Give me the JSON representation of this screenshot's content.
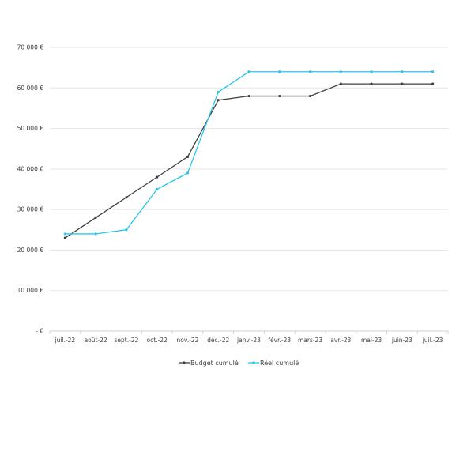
{
  "chart_data": {
    "type": "line",
    "title": "",
    "xlabel": "",
    "ylabel": "",
    "categories": [
      "juil.-22",
      "août-22",
      "sept.-22",
      "oct.-22",
      "nov.-22",
      "déc.-22",
      "janv.-23",
      "févr.-23",
      "mars-23",
      "avr.-23",
      "mai-23",
      "juin-23",
      "juil.-23"
    ],
    "ylim": [
      0,
      70000
    ],
    "y_ticks": [
      0,
      10000,
      20000,
      30000,
      40000,
      50000,
      60000,
      70000
    ],
    "y_tick_labels": [
      "- €",
      "10 000 €",
      "20 000 €",
      "30 000 €",
      "40 000 €",
      "50 000 €",
      "60 000 €",
      "70 000 €"
    ],
    "grid": true,
    "legend_position": "bottom",
    "series": [
      {
        "name": "Budget cumulé",
        "color": "#404040",
        "values": [
          23000,
          28000,
          33000,
          38000,
          43000,
          57000,
          58000,
          58000,
          58000,
          61000,
          61000,
          61000,
          61000
        ]
      },
      {
        "name": "Réel cumulé",
        "color": "#29c5ee",
        "values": [
          24000,
          24000,
          25000,
          35000,
          39000,
          59000,
          64000,
          64000,
          64000,
          64000,
          64000,
          64000,
          64000
        ]
      }
    ]
  }
}
